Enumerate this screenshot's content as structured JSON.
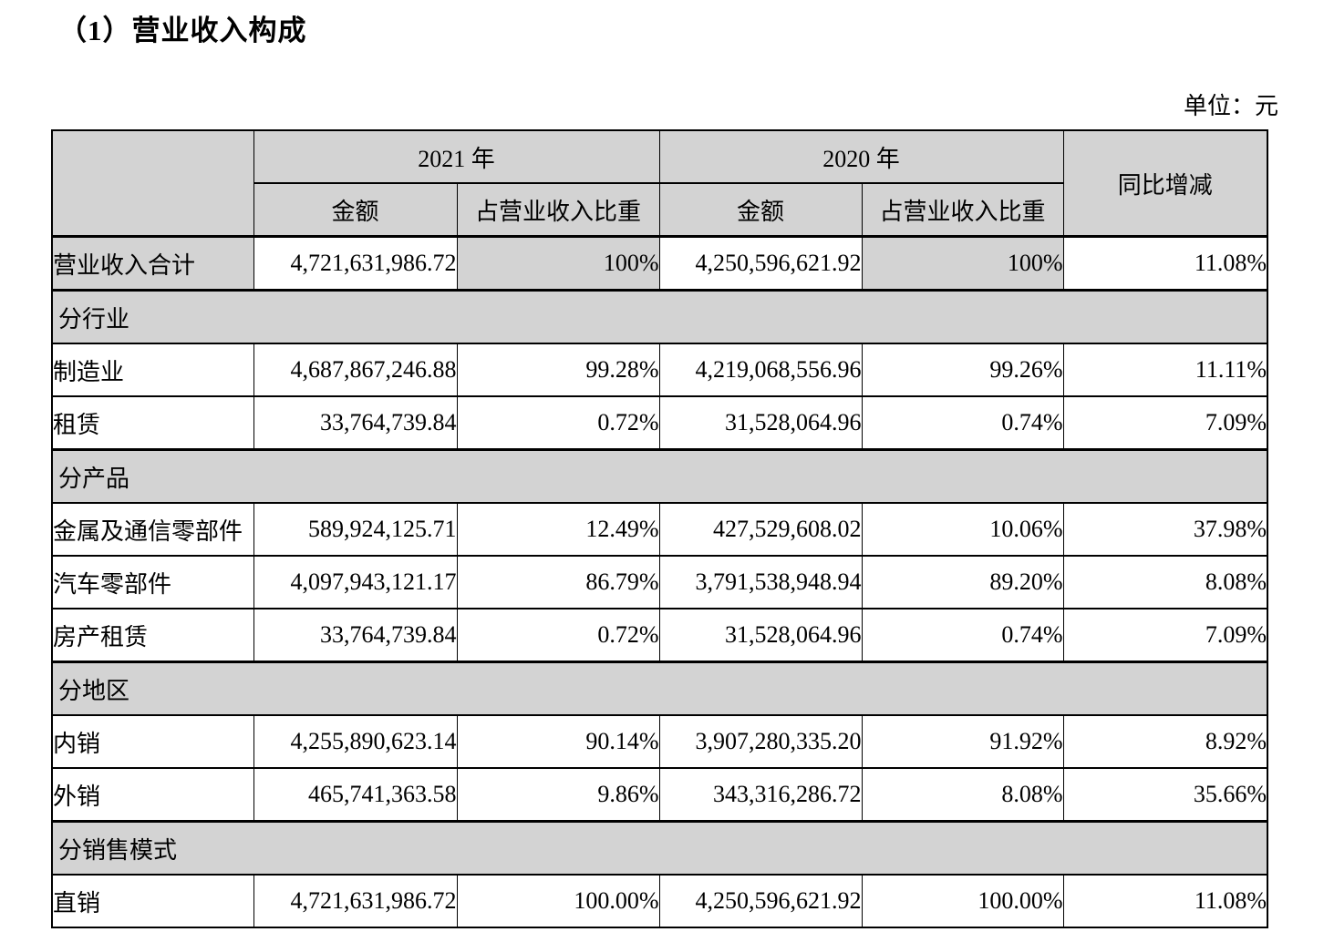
{
  "page": {
    "title": "（1）营业收入构成",
    "unit_label": "单位：元"
  },
  "table": {
    "header": {
      "year_2021": "2021 年",
      "year_2020": "2020 年",
      "amount_2021": "金额",
      "share_2021": "占营业收入比重",
      "amount_2020": "金额",
      "share_2020": "占营业收入比重",
      "yoy": "同比增减"
    },
    "rows": [
      {
        "type": "data",
        "highlight": true,
        "label": "营业收入合计",
        "amount_2021": "4,721,631,986.72",
        "share_2021": "100%",
        "amount_2020": "4,250,596,621.92",
        "share_2020": "100%",
        "yoy": "11.08%"
      },
      {
        "type": "section",
        "label": "分行业"
      },
      {
        "type": "data",
        "label": "制造业",
        "amount_2021": "4,687,867,246.88",
        "share_2021": "99.28%",
        "amount_2020": "4,219,068,556.96",
        "share_2020": "99.26%",
        "yoy": "11.11%"
      },
      {
        "type": "data",
        "label": "租赁",
        "amount_2021": "33,764,739.84",
        "share_2021": "0.72%",
        "amount_2020": "31,528,064.96",
        "share_2020": "0.74%",
        "yoy": "7.09%"
      },
      {
        "type": "section",
        "label": "分产品"
      },
      {
        "type": "data",
        "label": "金属及通信零部件",
        "amount_2021": "589,924,125.71",
        "share_2021": "12.49%",
        "amount_2020": "427,529,608.02",
        "share_2020": "10.06%",
        "yoy": "37.98%"
      },
      {
        "type": "data",
        "label": "汽车零部件",
        "amount_2021": "4,097,943,121.17",
        "share_2021": "86.79%",
        "amount_2020": "3,791,538,948.94",
        "share_2020": "89.20%",
        "yoy": "8.08%"
      },
      {
        "type": "data",
        "label": "房产租赁",
        "amount_2021": "33,764,739.84",
        "share_2021": "0.72%",
        "amount_2020": "31,528,064.96",
        "share_2020": "0.74%",
        "yoy": "7.09%"
      },
      {
        "type": "section",
        "label": "分地区"
      },
      {
        "type": "data",
        "label": "内销",
        "amount_2021": "4,255,890,623.14",
        "share_2021": "90.14%",
        "amount_2020": "3,907,280,335.20",
        "share_2020": "91.92%",
        "yoy": "8.92%"
      },
      {
        "type": "data",
        "label": "外销",
        "amount_2021": "465,741,363.58",
        "share_2021": "9.86%",
        "amount_2020": "343,316,286.72",
        "share_2020": "8.08%",
        "yoy": "35.66%"
      },
      {
        "type": "section",
        "label": "分销售模式"
      },
      {
        "type": "data",
        "label": "直销",
        "amount_2021": "4,721,631,986.72",
        "share_2021": "100.00%",
        "amount_2020": "4,250,596,621.92",
        "share_2020": "100.00%",
        "yoy": "11.08%"
      }
    ],
    "colors": {
      "shaded_bg": "#d3d3d3",
      "border": "#000000",
      "text": "#000000"
    }
  }
}
